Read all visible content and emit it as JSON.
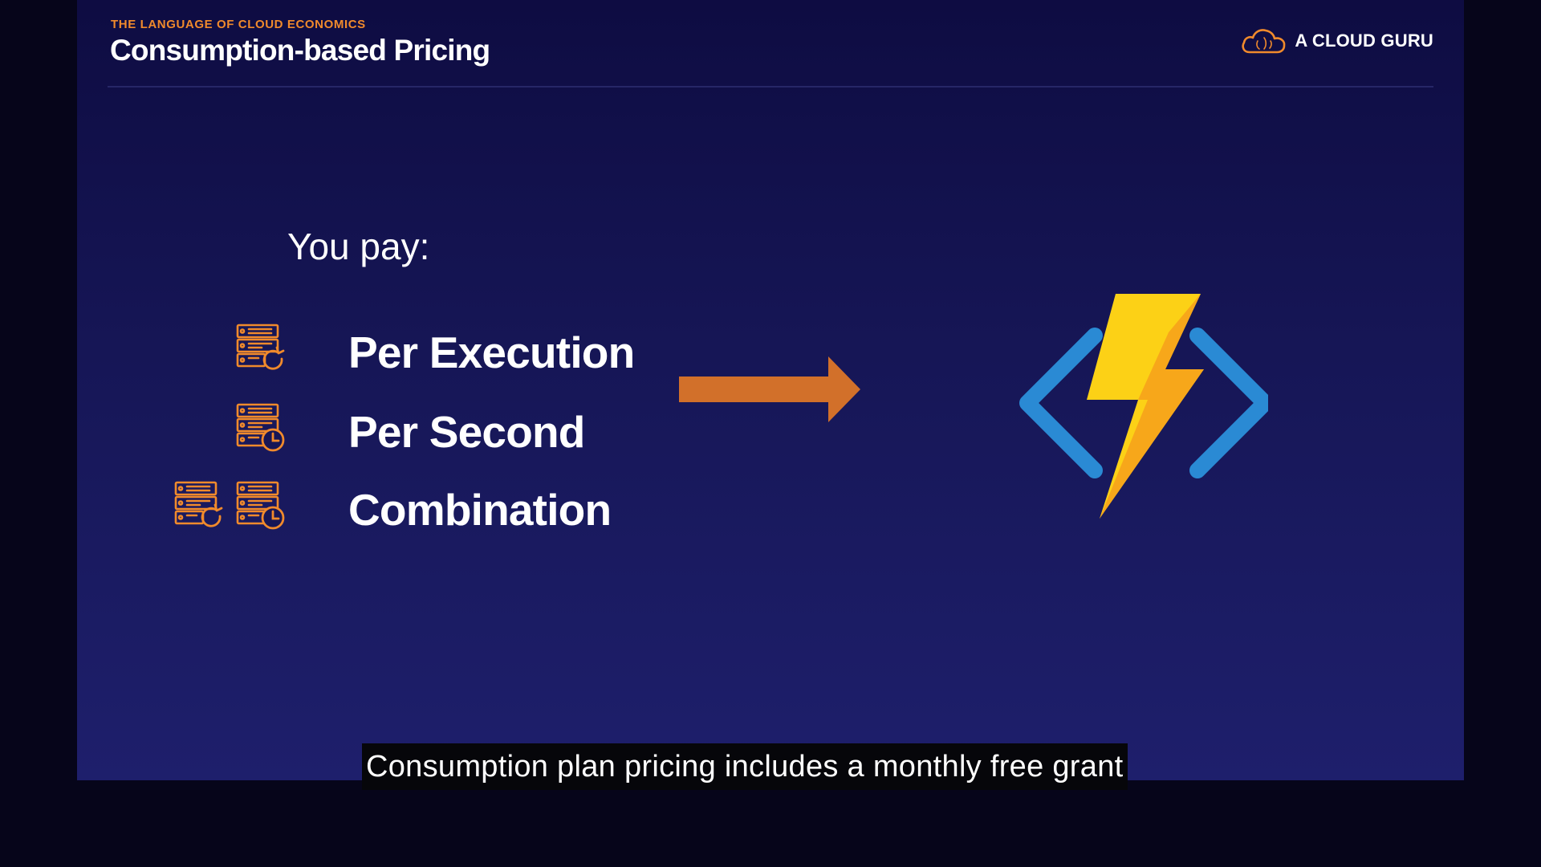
{
  "header": {
    "eyebrow": "THE LANGUAGE OF CLOUD ECONOMICS",
    "title": "Consumption-based Pricing"
  },
  "brand": {
    "name": "A CLOUD GURU",
    "icon": "cloud-logo-icon"
  },
  "content": {
    "lead": "You pay:",
    "items": [
      {
        "label": "Per Execution",
        "icons": [
          "server-refresh-icon"
        ]
      },
      {
        "label": "Per Second",
        "icons": [
          "server-clock-icon"
        ]
      },
      {
        "label": "Combination",
        "icons": [
          "server-refresh-icon",
          "server-clock-icon"
        ]
      }
    ],
    "arrow_icon": "right-arrow-icon",
    "product_icon": "azure-functions-icon"
  },
  "caption": {
    "text": "Consumption plan pricing includes a monthly free grant"
  },
  "colors": {
    "accent": "#f08a2c",
    "arrow": "#d2702a",
    "bolt_light": "#fcd116",
    "bolt_dark": "#f6a21b",
    "bracket": "#2a8ad4"
  }
}
